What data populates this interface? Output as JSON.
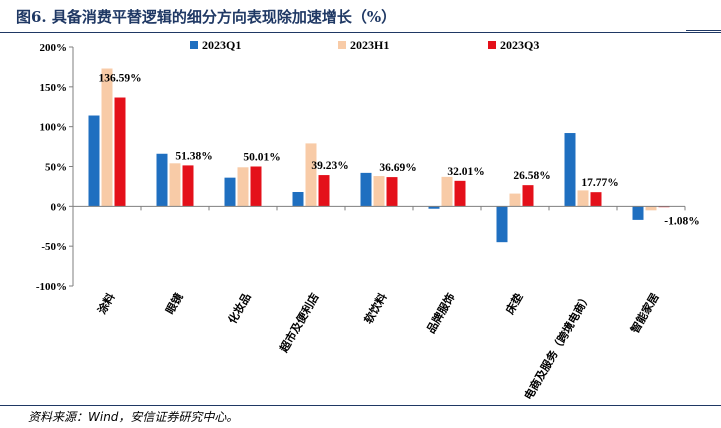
{
  "header": {
    "title": "图6. 具备消费平替逻辑的细分方向表现除加速增长（%）"
  },
  "footer": {
    "source": "资料来源：Wind，安信证券研究中心。"
  },
  "chart_data": {
    "type": "bar",
    "title": "",
    "xlabel": "",
    "ylabel": "",
    "ylim": [
      -100,
      200
    ],
    "yticks": [
      -100,
      -50,
      0,
      50,
      100,
      150,
      200
    ],
    "ytick_labels": [
      "-100%",
      "-50%",
      "0%",
      "50%",
      "100%",
      "150%",
      "200%"
    ],
    "legend_position": "top",
    "grid": false,
    "categories": [
      "涂料",
      "眼镜",
      "化妆品",
      "超市及便利店",
      "软饮料",
      "品牌服饰",
      "床垫",
      "电商及服务（跨境电商）",
      "智能家居"
    ],
    "series": [
      {
        "name": "2023Q1",
        "color": "#1f6fc0",
        "values": [
          114,
          66,
          36,
          18,
          42,
          -3,
          -45,
          92,
          -17
        ]
      },
      {
        "name": "2023H1",
        "color": "#f8cba7",
        "values": [
          173,
          54,
          49,
          79,
          38,
          37,
          16,
          20,
          -5
        ]
      },
      {
        "name": "2023Q3",
        "color": "#e4101a",
        "values": [
          136.59,
          51.38,
          50.01,
          39.23,
          36.69,
          32.01,
          26.58,
          17.77,
          -1.08
        ]
      }
    ],
    "data_labels": [
      "136.59%",
      "51.38%",
      "50.01%",
      "39.23%",
      "36.69%",
      "32.01%",
      "26.58%",
      "17.77%",
      "-1.08%"
    ]
  }
}
